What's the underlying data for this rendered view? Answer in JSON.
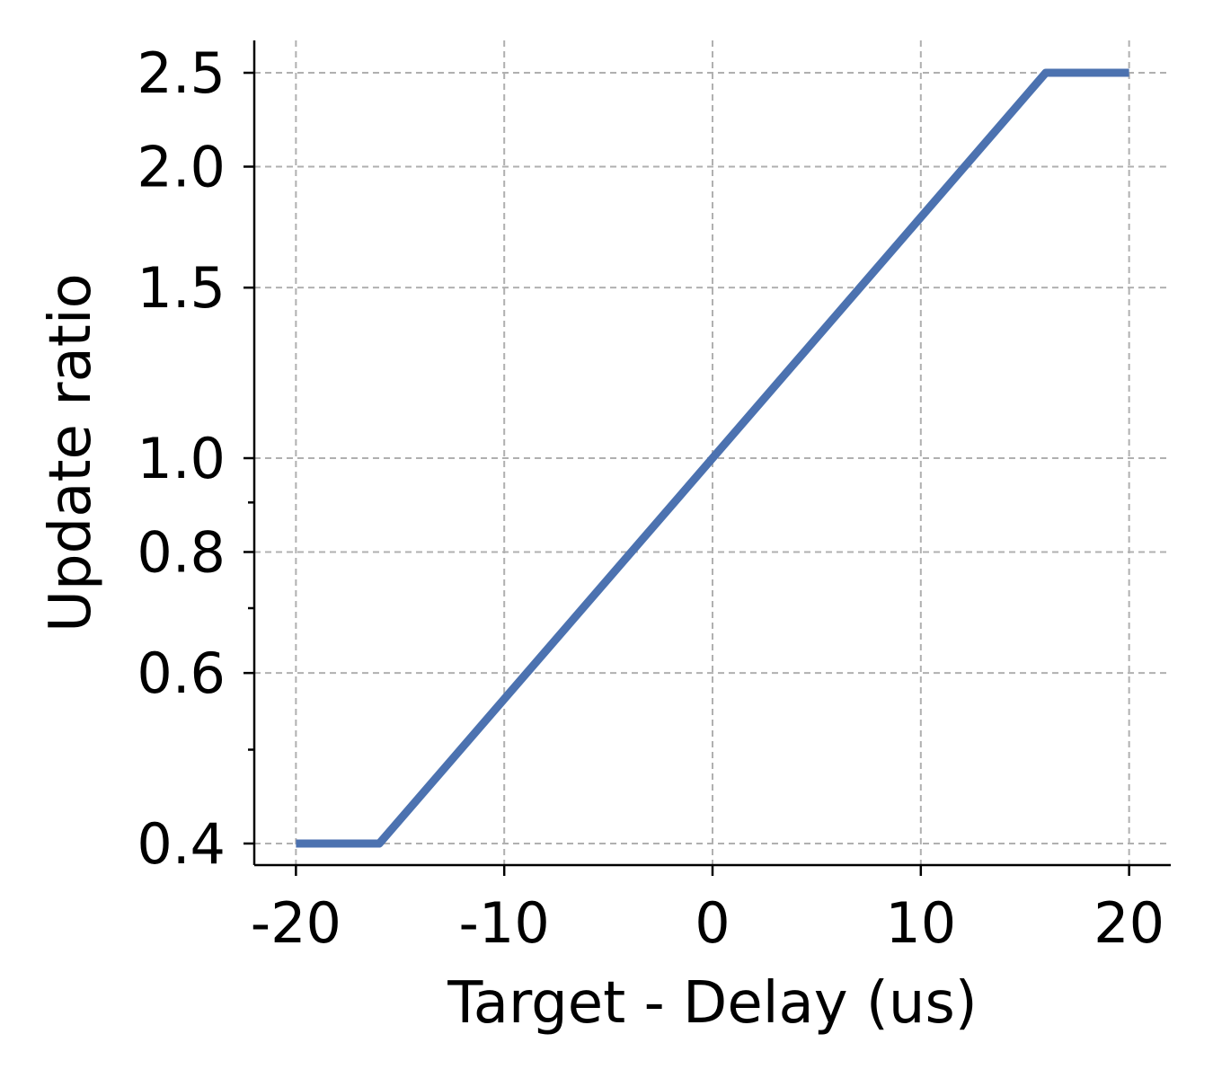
{
  "chart_data": {
    "type": "line",
    "xlabel": "Target - Delay (us)",
    "ylabel": "Update ratio",
    "xlim": [
      -22,
      22
    ],
    "ylim": [
      0.38,
      2.7
    ],
    "yscale": "log",
    "grid": true,
    "x_ticks": [
      -20,
      -10,
      0,
      10,
      20
    ],
    "x_tick_labels": [
      "-20",
      "-10",
      "0",
      "10",
      "20"
    ],
    "y_ticks": [
      0.4,
      0.6,
      0.8,
      1.0,
      1.5,
      2.0,
      2.5
    ],
    "y_tick_labels": [
      "0.4",
      "0.6",
      "0.8",
      "1.0",
      "1.5",
      "2.0",
      "2.5"
    ],
    "y_minor_ticks": [
      0.5,
      0.7,
      0.9
    ],
    "line_color": "#4c72b0",
    "series": [
      {
        "x": [
          -20,
          -16,
          16,
          20
        ],
        "y": [
          0.4,
          0.4,
          2.5,
          2.5
        ]
      }
    ]
  }
}
